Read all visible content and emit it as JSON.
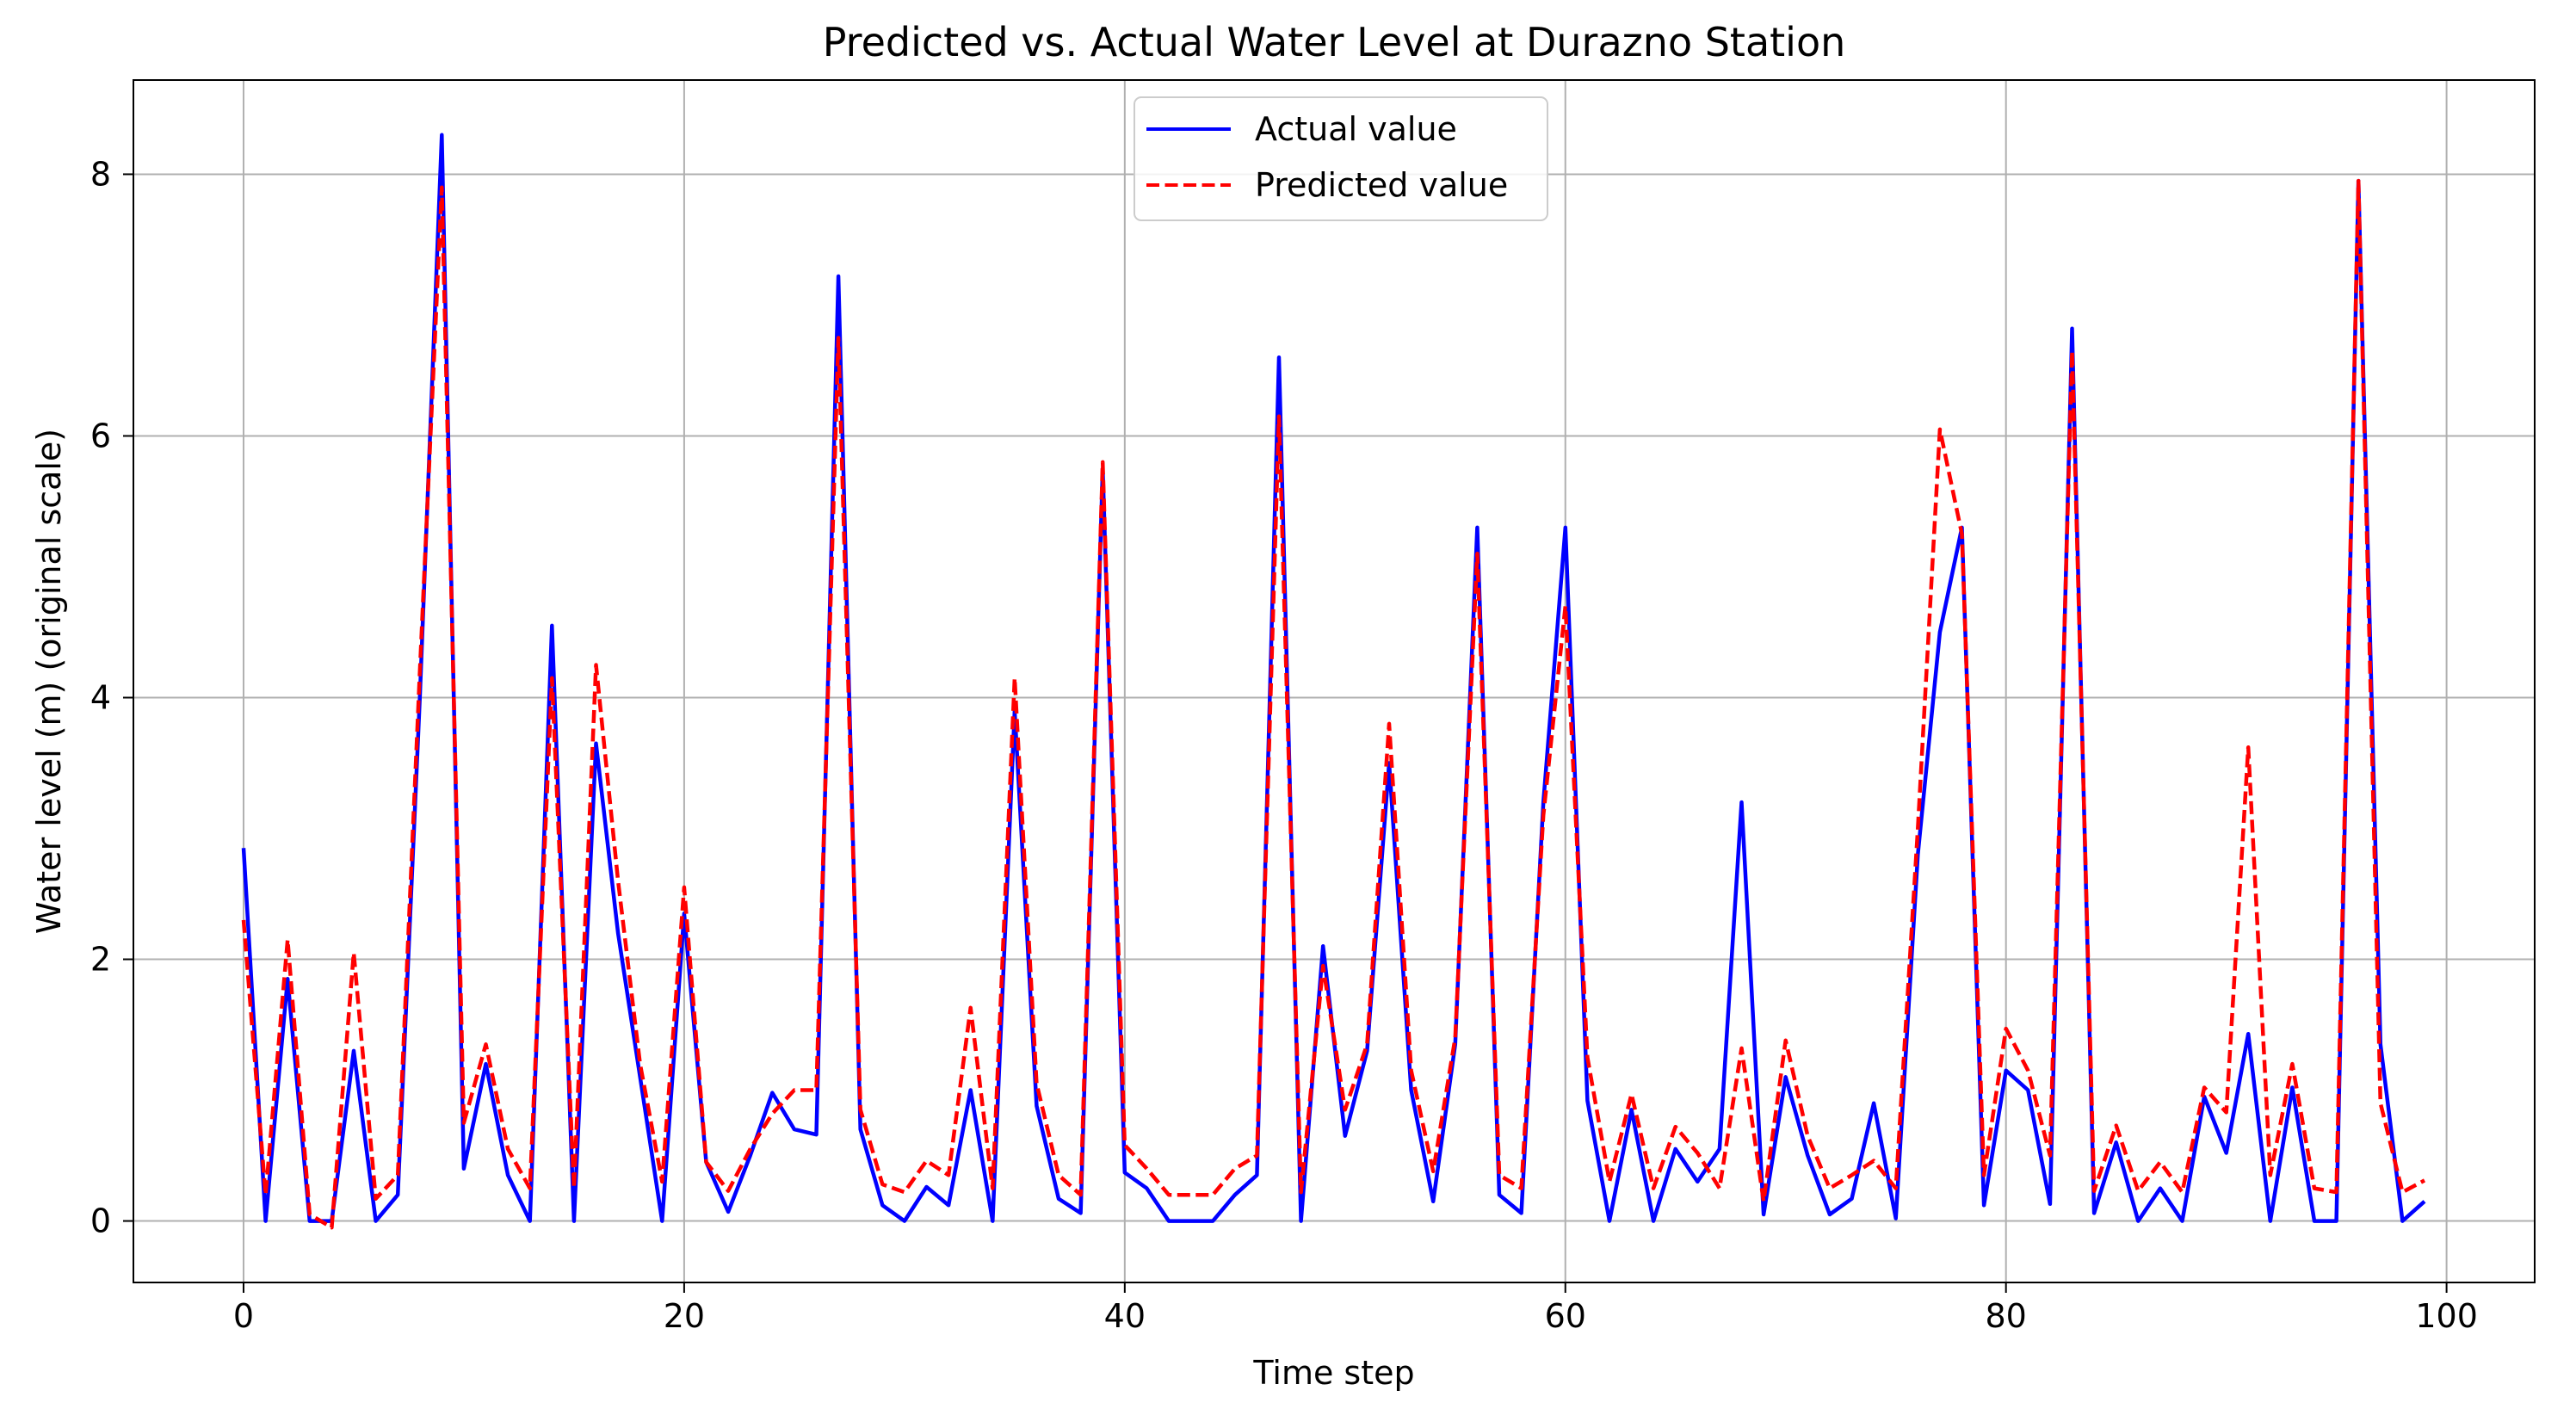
{
  "chart_data": {
    "type": "line",
    "title": "Predicted vs. Actual Water Level at Durazno Station",
    "xlabel": "Time step",
    "ylabel": "Water level (m) (original scale)",
    "xlim": [
      -5,
      104
    ],
    "ylim": [
      -0.47,
      8.72
    ],
    "xticks": [
      0,
      20,
      40,
      60,
      80,
      100
    ],
    "yticks": [
      0,
      2,
      4,
      6,
      8
    ],
    "grid": true,
    "legend_position": "top-center",
    "x": [
      0,
      1,
      2,
      3,
      4,
      5,
      6,
      7,
      8,
      9,
      10,
      11,
      12,
      13,
      14,
      15,
      16,
      17,
      18,
      19,
      20,
      21,
      22,
      23,
      24,
      25,
      26,
      27,
      28,
      29,
      30,
      31,
      32,
      33,
      34,
      35,
      36,
      37,
      38,
      39,
      40,
      41,
      42,
      43,
      44,
      45,
      46,
      47,
      48,
      49,
      50,
      51,
      52,
      53,
      54,
      55,
      56,
      57,
      58,
      59,
      60,
      61,
      62,
      63,
      64,
      65,
      66,
      67,
      68,
      69,
      70,
      71,
      72,
      73,
      74,
      75,
      76,
      77,
      78,
      79,
      80,
      81,
      82,
      83,
      84,
      85,
      86,
      87,
      88,
      89,
      90,
      91,
      92,
      93,
      94,
      95,
      96,
      97,
      98,
      99
    ],
    "series": [
      {
        "name": "Actual value",
        "color": "#0000ff",
        "style": "solid",
        "values": [
          2.85,
          0.0,
          1.85,
          0.0,
          0.0,
          1.3,
          0.0,
          0.2,
          4.0,
          8.3,
          0.4,
          1.2,
          0.35,
          0.0,
          4.55,
          0.0,
          3.65,
          2.2,
          1.1,
          0.0,
          2.35,
          0.45,
          0.07,
          0.5,
          0.98,
          0.7,
          0.66,
          7.22,
          0.7,
          0.12,
          0.0,
          0.26,
          0.12,
          1.0,
          0.0,
          3.9,
          0.88,
          0.17,
          0.06,
          5.75,
          0.37,
          0.25,
          0.0,
          0.0,
          0.0,
          0.2,
          0.35,
          6.6,
          0.0,
          2.1,
          0.65,
          1.3,
          3.5,
          1.0,
          0.15,
          1.35,
          5.3,
          0.2,
          0.06,
          3.2,
          5.3,
          0.92,
          0.0,
          0.85,
          0.0,
          0.55,
          0.3,
          0.55,
          3.2,
          0.05,
          1.1,
          0.5,
          0.05,
          0.17,
          0.9,
          0.02,
          2.8,
          4.5,
          5.3,
          0.12,
          1.15,
          1.0,
          0.13,
          6.82,
          0.06,
          0.6,
          0.0,
          0.25,
          0.0,
          0.95,
          0.52,
          1.43,
          0.0,
          1.02,
          0.0,
          0.0,
          7.95,
          1.35,
          0.0,
          0.15
        ]
      },
      {
        "name": "Predicted value",
        "color": "#ff0000",
        "style": "dashed",
        "values": [
          2.3,
          0.2,
          2.15,
          0.05,
          -0.05,
          2.05,
          0.17,
          0.35,
          4.2,
          7.9,
          0.75,
          1.35,
          0.55,
          0.25,
          4.15,
          0.25,
          4.25,
          2.6,
          1.2,
          0.3,
          2.55,
          0.45,
          0.23,
          0.55,
          0.82,
          1.0,
          1.0,
          6.75,
          0.85,
          0.28,
          0.22,
          0.46,
          0.35,
          1.63,
          0.25,
          4.15,
          1.05,
          0.35,
          0.2,
          5.8,
          0.58,
          0.4,
          0.2,
          0.2,
          0.2,
          0.4,
          0.5,
          6.15,
          0.22,
          1.95,
          0.85,
          1.35,
          3.8,
          1.15,
          0.38,
          1.4,
          5.1,
          0.35,
          0.25,
          3.1,
          4.7,
          1.25,
          0.3,
          0.97,
          0.25,
          0.72,
          0.52,
          0.25,
          1.32,
          0.15,
          1.38,
          0.65,
          0.25,
          0.35,
          0.46,
          0.25,
          3.0,
          6.05,
          5.25,
          0.35,
          1.47,
          1.15,
          0.5,
          6.65,
          0.23,
          0.73,
          0.23,
          0.45,
          0.22,
          1.02,
          0.83,
          3.62,
          0.35,
          1.2,
          0.25,
          0.22,
          7.95,
          0.9,
          0.22,
          0.31
        ]
      }
    ]
  }
}
